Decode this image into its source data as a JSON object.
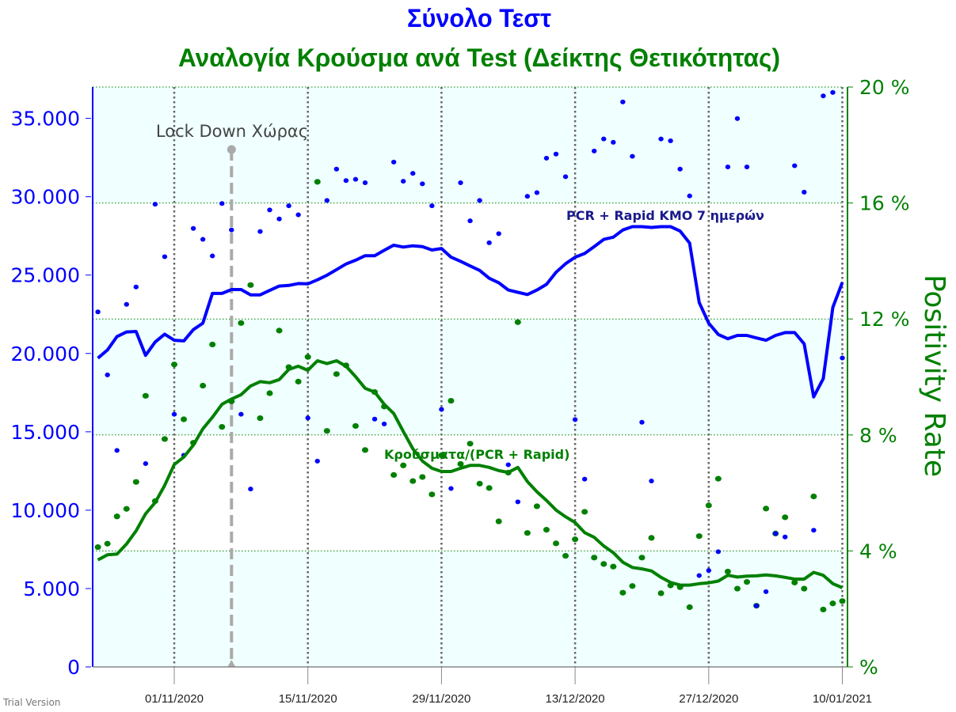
{
  "chart_data": {
    "type": "line",
    "title": "Σύνολο Τεστ",
    "subtitle": "Αναλογία Κρούσμα ανά Test (Δείκτης Θετικότητας)",
    "xlabel": "",
    "ylabel": "",
    "y2label": "Positivity Rate",
    "ylim": [
      0,
      37000
    ],
    "y2lim": [
      0,
      20
    ],
    "grid": true,
    "colors": {
      "tests": "#0000ff",
      "positivity": "#008000",
      "lockdown": "#aaaaaa",
      "band": "#f0ffff"
    },
    "yticks": [
      "0",
      "5.000",
      "10.000",
      "15.000",
      "20.000",
      "25.000",
      "30.000",
      "35.000"
    ],
    "ytick_values": [
      0,
      5000,
      10000,
      15000,
      20000,
      25000,
      30000,
      35000
    ],
    "y2ticks": [
      "%",
      "4 %",
      "8 %",
      "12 %",
      "16 %",
      "20 %"
    ],
    "y2tick_values": [
      0,
      4,
      8,
      12,
      16,
      20
    ],
    "xticks": [
      "01/11/2020",
      "15/11/2020",
      "29/11/2020",
      "13/12/2020",
      "27/12/2020",
      "10/01/2021"
    ],
    "annotations": {
      "lockdown": {
        "label": "Lock Down Χώρας",
        "date": "07/11/2020"
      }
    },
    "x": [
      "24/10/2020",
      "25/10/2020",
      "26/10/2020",
      "27/10/2020",
      "28/10/2020",
      "29/10/2020",
      "30/10/2020",
      "31/10/2020",
      "01/11/2020",
      "02/11/2020",
      "03/11/2020",
      "04/11/2020",
      "05/11/2020",
      "06/11/2020",
      "07/11/2020",
      "08/11/2020",
      "09/11/2020",
      "10/11/2020",
      "11/11/2020",
      "12/11/2020",
      "13/11/2020",
      "14/11/2020",
      "15/11/2020",
      "16/11/2020",
      "17/11/2020",
      "18/11/2020",
      "19/11/2020",
      "20/11/2020",
      "21/11/2020",
      "22/11/2020",
      "23/11/2020",
      "24/11/2020",
      "25/11/2020",
      "26/11/2020",
      "27/11/2020",
      "28/11/2020",
      "29/11/2020",
      "30/11/2020",
      "01/12/2020",
      "02/12/2020",
      "03/12/2020",
      "04/12/2020",
      "05/12/2020",
      "06/12/2020",
      "07/12/2020",
      "08/12/2020",
      "09/12/2020",
      "10/12/2020",
      "11/12/2020",
      "12/12/2020",
      "13/12/2020",
      "14/12/2020",
      "15/12/2020",
      "16/12/2020",
      "17/12/2020",
      "18/12/2020",
      "19/12/2020",
      "20/12/2020",
      "21/12/2020",
      "22/12/2020",
      "23/12/2020",
      "24/12/2020",
      "25/12/2020",
      "26/12/2020",
      "27/12/2020",
      "28/12/2020",
      "29/12/2020",
      "30/12/2020",
      "31/12/2020",
      "01/01/2021",
      "02/01/2021",
      "03/01/2021",
      "04/01/2021",
      "05/01/2021",
      "06/01/2021",
      "07/01/2021",
      "08/01/2021",
      "09/01/2021",
      "10/01/2021"
    ],
    "series": [
      {
        "axis": "left",
        "kind": "scatter",
        "values": [
          22650,
          18630,
          13810,
          23130,
          24240,
          12970,
          29520,
          26170,
          16120,
          13500,
          27980,
          27280,
          26220,
          29570,
          27880,
          16120,
          11350,
          27780,
          29160,
          28580,
          29420,
          28850,
          15880,
          13130,
          29760,
          31760,
          31030,
          31110,
          30890,
          15810,
          15500,
          32210,
          30990,
          31490,
          30820,
          29420,
          16430,
          11380,
          30890,
          28460,
          29760,
          27060,
          27640,
          12900,
          10530,
          30030,
          30260,
          32460,
          32720,
          31280,
          15780,
          11980,
          32920,
          33690,
          33470,
          36050,
          32580,
          15610,
          11860,
          33690,
          33570,
          31760,
          30050,
          5830,
          6150,
          7350,
          31900,
          34990,
          31900,
          3900,
          4800,
          8510,
          8290,
          31980,
          30290,
          8720,
          36430,
          36650,
          19710
        ]
      },
      {
        "axis": "left",
        "kind": "line",
        "name": "PCR + Rapid ΚΜΟ 7 ημερών",
        "values": [
          19700,
          20220,
          21080,
          21370,
          21400,
          19880,
          20730,
          21230,
          20840,
          20800,
          21520,
          21930,
          23830,
          23830,
          24080,
          24080,
          23740,
          23740,
          24020,
          24300,
          24340,
          24460,
          24440,
          24700,
          24990,
          25350,
          25710,
          25950,
          26240,
          26240,
          26580,
          26910,
          26790,
          26870,
          26820,
          26600,
          26700,
          26140,
          25880,
          25580,
          25300,
          24800,
          24510,
          24050,
          23900,
          23760,
          24050,
          24410,
          25180,
          25730,
          26140,
          26380,
          26820,
          27280,
          27420,
          27880,
          28090,
          28090,
          28040,
          28090,
          28090,
          27810,
          27040,
          23250,
          21930,
          21210,
          20940,
          21150,
          21150,
          20990,
          20840,
          21150,
          21330,
          21330,
          20610,
          17230,
          18390,
          22940,
          24530
        ]
      },
      {
        "axis": "right",
        "kind": "scatter",
        "values": [
          4.13,
          4.25,
          5.19,
          5.45,
          6.38,
          9.35,
          5.72,
          7.86,
          10.43,
          8.54,
          7.73,
          9.7,
          11.12,
          8.28,
          9.16,
          11.86,
          13.17,
          8.58,
          9.44,
          11.6,
          10.34,
          9.84,
          10.69,
          16.73,
          8.14,
          10.1,
          10.4,
          8.31,
          7.48,
          9.48,
          8.98,
          6.62,
          6.95,
          6.41,
          6.55,
          5.95,
          7.3,
          9.18,
          7.0,
          7.7,
          6.32,
          6.17,
          5.02,
          6.7,
          11.89,
          4.62,
          5.54,
          4.73,
          4.26,
          3.83,
          4.4,
          5.35,
          3.77,
          3.55,
          3.46,
          2.56,
          2.79,
          3.77,
          4.45,
          2.54,
          2.81,
          2.75,
          2.06,
          4.51,
          5.57,
          6.49,
          3.29,
          2.7,
          2.93,
          2.11,
          5.46,
          4.6,
          5.16,
          2.91,
          2.7,
          5.88,
          1.98,
          2.19,
          2.27
        ]
      },
      {
        "axis": "right",
        "kind": "line",
        "name": "Κρούσματα/(PCR + Rapid)",
        "values": [
          3.69,
          3.87,
          3.89,
          4.24,
          4.69,
          5.28,
          5.67,
          6.26,
          6.98,
          7.24,
          7.65,
          8.21,
          8.61,
          9.06,
          9.24,
          9.39,
          9.69,
          9.84,
          9.8,
          9.91,
          10.26,
          10.37,
          10.23,
          10.56,
          10.46,
          10.56,
          10.37,
          10.01,
          9.61,
          9.48,
          9.06,
          8.74,
          8.12,
          7.52,
          7.1,
          6.85,
          6.74,
          6.74,
          6.85,
          6.95,
          6.95,
          6.88,
          6.77,
          6.71,
          6.88,
          6.39,
          6.04,
          5.74,
          5.41,
          5.18,
          4.98,
          4.63,
          4.47,
          4.17,
          3.94,
          3.61,
          3.43,
          3.38,
          3.31,
          3.09,
          2.91,
          2.82,
          2.82,
          2.87,
          2.9,
          2.96,
          3.16,
          3.1,
          3.13,
          3.14,
          3.17,
          3.14,
          3.09,
          3.03,
          3.03,
          3.26,
          3.16,
          2.87,
          2.73
        ]
      }
    ]
  },
  "watermark": "Trial Version"
}
